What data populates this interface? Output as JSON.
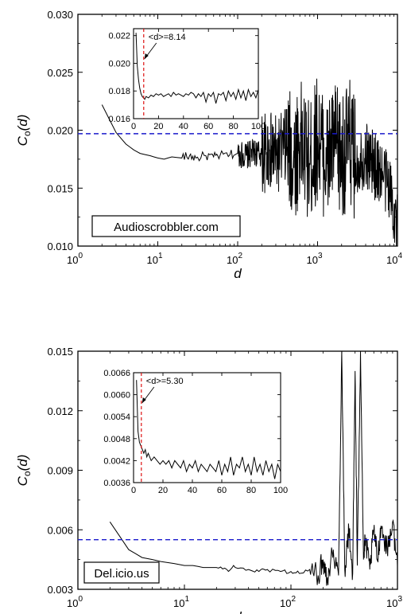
{
  "chart_data": [
    {
      "type": "line",
      "x_scale": "log",
      "xlim": [
        1,
        10000
      ],
      "ylim": [
        0.01,
        0.03
      ],
      "xlabel": "d",
      "ylabel": "C_o(d)",
      "ylabel_main": "C",
      "ylabel_sub": "o",
      "ylabel_arg": "(d)",
      "x_ticks": [
        1,
        10,
        100,
        1000,
        10000
      ],
      "x_tick_base": "10",
      "x_tick_exps": [
        "0",
        "1",
        "2",
        "3",
        "4"
      ],
      "y_ticks": [
        "0.010",
        "0.015",
        "0.020",
        "0.025",
        "0.030"
      ],
      "label_box": "Audioscrobbler.com",
      "average_line": 0.0197,
      "series": [
        {
          "x": [
            2,
            3,
            4,
            5,
            6,
            8,
            10,
            12,
            15,
            20,
            25,
            30,
            40,
            50,
            60,
            80,
            100,
            130,
            160,
            200,
            250,
            300,
            400,
            500,
            600,
            800,
            1000,
            1300,
            1600,
            2000,
            2500,
            3000,
            4000,
            5000,
            6000,
            8000,
            10000
          ],
          "y": [
            0.0222,
            0.0198,
            0.0188,
            0.0183,
            0.018,
            0.0178,
            0.0176,
            0.0175,
            0.0177,
            0.0176,
            0.0178,
            0.0176,
            0.0178,
            0.0177,
            0.0178,
            0.0179,
            0.018,
            0.0178,
            0.0181,
            0.0179,
            0.0182,
            0.0178,
            0.0185,
            0.0175,
            0.019,
            0.017,
            0.0195,
            0.0172,
            0.0188,
            0.0176,
            0.019,
            0.0172,
            0.018,
            0.017,
            0.0165,
            0.0152,
            0.0115
          ]
        }
      ],
      "inset": {
        "xlim": [
          0,
          100
        ],
        "ylim": [
          0.016,
          0.0225
        ],
        "x_ticks": [
          "0",
          "20",
          "40",
          "60",
          "80",
          "100"
        ],
        "y_ticks": [
          "0.016",
          "0.018",
          "0.020",
          "0.022"
        ],
        "vline": 8.14,
        "annotation": "<d>=8.14",
        "series": [
          {
            "x": [
              2,
              3,
              4,
              5,
              6,
              7,
              8,
              9,
              10,
              12,
              14,
              16,
              18,
              20,
              22,
              24,
              26,
              28,
              30,
              32,
              34,
              36,
              38,
              40,
              42,
              44,
              46,
              48,
              50,
              52,
              54,
              56,
              58,
              60,
              62,
              64,
              66,
              68,
              70,
              72,
              74,
              76,
              78,
              80,
              82,
              84,
              86,
              88,
              90,
              92,
              94,
              96,
              98,
              100
            ],
            "y": [
              0.0222,
              0.0198,
              0.0188,
              0.0182,
              0.0178,
              0.0176,
              0.0175,
              0.0174,
              0.0176,
              0.0175,
              0.0177,
              0.0176,
              0.0178,
              0.0177,
              0.0178,
              0.0176,
              0.0177,
              0.0178,
              0.0176,
              0.0179,
              0.0177,
              0.0178,
              0.0177,
              0.0176,
              0.0178,
              0.0177,
              0.0179,
              0.0178,
              0.0175,
              0.0178,
              0.0176,
              0.0179,
              0.0172,
              0.0178,
              0.0176,
              0.0179,
              0.0171,
              0.0178,
              0.0177,
              0.0179,
              0.0173,
              0.018,
              0.0176,
              0.0179,
              0.0174,
              0.0181,
              0.0175,
              0.018,
              0.0173,
              0.0181,
              0.0176,
              0.0179,
              0.0175,
              0.0181
            ]
          }
        ]
      }
    },
    {
      "type": "line",
      "x_scale": "log",
      "xlim": [
        1,
        1000
      ],
      "ylim": [
        0.003,
        0.015
      ],
      "xlabel": "d",
      "ylabel": "C_o(d)",
      "ylabel_main": "C",
      "ylabel_sub": "o",
      "ylabel_arg": "(d)",
      "x_ticks": [
        1,
        10,
        100,
        1000
      ],
      "x_tick_base": "10",
      "x_tick_exps": [
        "0",
        "1",
        "2",
        "3"
      ],
      "y_ticks": [
        "0.003",
        "0.006",
        "0.009",
        "0.012",
        "0.015"
      ],
      "label_box": "Del.icio.us",
      "average_line": 0.0055,
      "series": [
        {
          "x": [
            2,
            3,
            4,
            5,
            6,
            8,
            10,
            12,
            15,
            20,
            25,
            30,
            40,
            50,
            60,
            80,
            100,
            120,
            150,
            180,
            200,
            220,
            250,
            280,
            300,
            320,
            350,
            380,
            400,
            420,
            450,
            480,
            500,
            550,
            600,
            650,
            700,
            800,
            900,
            1000
          ],
          "y": [
            0.0064,
            0.005,
            0.0046,
            0.0045,
            0.0044,
            0.0043,
            0.0042,
            0.0042,
            0.0041,
            0.0041,
            0.004,
            0.0041,
            0.004,
            0.0039,
            0.004,
            0.0039,
            0.0039,
            0.0038,
            0.004,
            0.0037,
            0.0045,
            0.0036,
            0.005,
            0.0037,
            0.015,
            0.004,
            0.006,
            0.0038,
            0.014,
            0.0042,
            0.015,
            0.0045,
            0.0055,
            0.004,
            0.006,
            0.0045,
            0.0062,
            0.005,
            0.0064,
            0.0042
          ]
        }
      ],
      "inset": {
        "xlim": [
          0,
          100
        ],
        "ylim": [
          0.0036,
          0.0066
        ],
        "x_ticks": [
          "0",
          "20",
          "40",
          "60",
          "80",
          "100"
        ],
        "y_ticks": [
          "0.0036",
          "0.0042",
          "0.0048",
          "0.0054",
          "0.0060",
          "0.0066"
        ],
        "vline": 5.3,
        "annotation": "<d>=5.30",
        "series": [
          {
            "x": [
              2,
              3,
              4,
              5,
              6,
              7,
              8,
              9,
              10,
              12,
              14,
              16,
              18,
              20,
              22,
              24,
              26,
              28,
              30,
              32,
              34,
              36,
              38,
              40,
              42,
              44,
              46,
              48,
              50,
              52,
              54,
              56,
              58,
              60,
              62,
              64,
              66,
              68,
              70,
              72,
              74,
              76,
              78,
              80,
              82,
              84,
              86,
              88,
              90,
              92,
              94,
              96,
              98,
              100
            ],
            "y": [
              0.0064,
              0.005,
              0.0047,
              0.0046,
              0.0045,
              0.0044,
              0.0045,
              0.0043,
              0.0044,
              0.0042,
              0.0043,
              0.0042,
              0.0041,
              0.0042,
              0.0041,
              0.0042,
              0.004,
              0.0042,
              0.0041,
              0.004,
              0.0042,
              0.0039,
              0.0041,
              0.004,
              0.0042,
              0.0039,
              0.0041,
              0.004,
              0.0039,
              0.0041,
              0.004,
              0.0039,
              0.0042,
              0.0038,
              0.0041,
              0.0039,
              0.0043,
              0.0038,
              0.0041,
              0.004,
              0.0043,
              0.0039,
              0.0041,
              0.0038,
              0.0043,
              0.0039,
              0.0041,
              0.0038,
              0.0042,
              0.0039,
              0.0041,
              0.0037,
              0.0041,
              0.0039
            ]
          }
        ]
      }
    }
  ]
}
